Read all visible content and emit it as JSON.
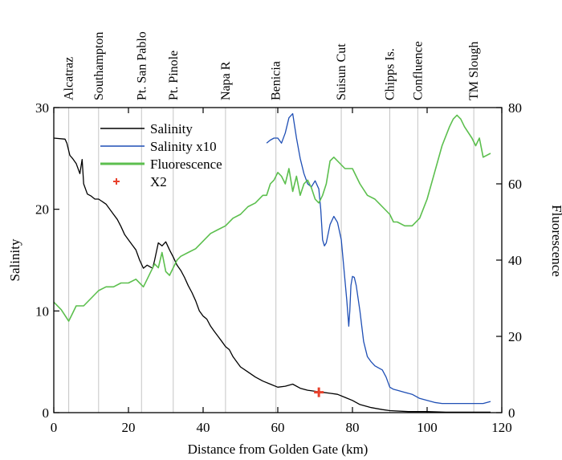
{
  "chart_data": {
    "type": "line",
    "xlabel": "Distance from Golden Gate (km)",
    "ylabel_left": "Salinity",
    "ylabel_right": "Fluorescence",
    "xlim": [
      0,
      120
    ],
    "ylim_left": [
      0,
      30
    ],
    "ylim_right": [
      0,
      80
    ],
    "x_ticks": [
      0,
      20,
      40,
      60,
      80,
      100,
      120
    ],
    "y_left_ticks": [
      0,
      10,
      20,
      30
    ],
    "y_right_ticks": [
      0,
      20,
      40,
      60,
      80
    ],
    "legend_position": "top-left",
    "stations": [
      {
        "name": "Alcatraz",
        "x": 4
      },
      {
        "name": "Southampton",
        "x": 12
      },
      {
        "name": "Pt. San Pablo",
        "x": 23.5
      },
      {
        "name": "Pt. Pinole",
        "x": 32
      },
      {
        "name": "Napa R",
        "x": 46
      },
      {
        "name": "Benicia",
        "x": 59.5
      },
      {
        "name": "Suisun Cut",
        "x": 77
      },
      {
        "name": "Chipps Is.",
        "x": 90
      },
      {
        "name": "Confluence",
        "x": 97.5
      },
      {
        "name": "TM Slough",
        "x": 112.5
      }
    ],
    "series": [
      {
        "name": "Salinity",
        "axis": "left",
        "color": "#000000",
        "x": [
          0,
          3,
          3.5,
          4.3,
          5,
          6,
          7,
          7.6,
          8,
          9,
          10,
          11,
          12,
          14,
          16,
          17,
          18,
          19,
          20,
          21,
          22,
          23,
          24,
          25,
          26,
          26.5,
          27,
          28,
          29,
          30,
          31,
          32,
          33,
          34,
          35,
          36,
          37,
          38,
          39,
          40,
          41,
          42,
          43,
          44,
          45,
          46,
          47,
          48,
          49,
          50,
          52,
          54,
          56,
          58,
          60,
          62,
          64,
          66,
          68,
          70,
          72,
          74,
          76,
          78,
          80,
          82,
          85,
          88,
          90,
          95,
          100,
          105,
          110,
          117
        ],
        "y": [
          27,
          26.9,
          26.5,
          25.3,
          25,
          24.5,
          23.5,
          24.9,
          22.5,
          21.5,
          21.3,
          21,
          21,
          20.5,
          19.5,
          19,
          18.3,
          17.5,
          17,
          16.5,
          16,
          15,
          14.2,
          14.5,
          14.3,
          14.2,
          15,
          16.7,
          16.4,
          16.8,
          16,
          15.3,
          14.5,
          14,
          13.3,
          12.5,
          11.8,
          11,
          10,
          9.5,
          9.2,
          8.5,
          8,
          7.5,
          7,
          6.5,
          6.2,
          5.5,
          5,
          4.5,
          4,
          3.5,
          3.1,
          2.8,
          2.5,
          2.6,
          2.8,
          2.4,
          2.2,
          2.1,
          2,
          1.9,
          1.8,
          1.5,
          1.2,
          0.8,
          0.5,
          0.3,
          0.2,
          0.1,
          0.1,
          0.05,
          0.05,
          0.05
        ]
      },
      {
        "name": "Salinity x10",
        "axis": "left",
        "color": "#1f4fb5",
        "x": [
          57,
          58,
          59,
          60,
          61,
          62,
          63,
          64,
          65,
          66,
          67,
          68,
          69,
          70,
          71,
          71.5,
          72,
          72.5,
          73,
          74,
          75,
          76,
          77,
          78,
          78.5,
          79,
          79.3,
          79.6,
          80,
          80.5,
          81,
          82,
          83,
          84,
          85,
          86,
          87,
          88,
          89,
          90,
          91,
          92,
          94,
          96,
          98,
          100,
          102,
          104,
          106,
          110,
          114,
          115,
          117
        ],
        "y": [
          26.5,
          26.8,
          27,
          27,
          26.5,
          27.5,
          29,
          29.4,
          27,
          25,
          23.5,
          22.5,
          22.2,
          22.8,
          22,
          20,
          17,
          16.4,
          16.7,
          18.5,
          19.3,
          18.7,
          17,
          13,
          11,
          8.5,
          10,
          12.5,
          13.4,
          13.3,
          12.5,
          10,
          7,
          5.5,
          5,
          4.6,
          4.4,
          4.2,
          3.5,
          2.5,
          2.3,
          2.2,
          2,
          1.8,
          1.4,
          1.2,
          1,
          0.9,
          0.9,
          0.9,
          0.9,
          0.9,
          1.1
        ]
      },
      {
        "name": "Fluorescence",
        "axis": "right",
        "color": "#5cbf4e",
        "x": [
          0,
          2,
          4,
          5,
          6,
          8,
          10,
          12,
          14,
          16,
          18,
          20,
          22,
          24,
          25,
          26,
          27,
          28,
          29,
          30,
          31,
          32,
          33,
          34,
          36,
          38,
          40,
          42,
          44,
          46,
          48,
          50,
          52,
          54,
          56,
          57,
          58,
          59,
          60,
          61,
          62,
          63,
          64,
          65,
          66,
          67,
          68,
          69,
          70,
          71,
          72,
          73,
          74,
          75,
          76,
          78,
          80,
          82,
          84,
          86,
          88,
          90,
          91,
          92,
          94,
          96,
          98,
          100,
          102,
          104,
          106,
          107,
          108,
          109,
          110,
          112,
          113,
          114,
          115,
          117
        ],
        "y": [
          29,
          27,
          24,
          26,
          28,
          28,
          30,
          32,
          33,
          33,
          34,
          34,
          35,
          33,
          35,
          37,
          39,
          38,
          42,
          37,
          36,
          38,
          40,
          41,
          42,
          43,
          45,
          47,
          48,
          49,
          51,
          52,
          54,
          55,
          57,
          57,
          60,
          61,
          63,
          62,
          60,
          64,
          58,
          62,
          57,
          60,
          61,
          59,
          56,
          55,
          57,
          60,
          66,
          67,
          66,
          64,
          64,
          60,
          57,
          56,
          54,
          52,
          50,
          50,
          49,
          49,
          51,
          56,
          63,
          70,
          75,
          77,
          78,
          77,
          75,
          72,
          70,
          72,
          67,
          68
        ]
      },
      {
        "name": "X2",
        "axis": "left",
        "color": "#e8412c",
        "marker": "plus",
        "x": [
          71
        ],
        "y": [
          2
        ]
      }
    ]
  }
}
